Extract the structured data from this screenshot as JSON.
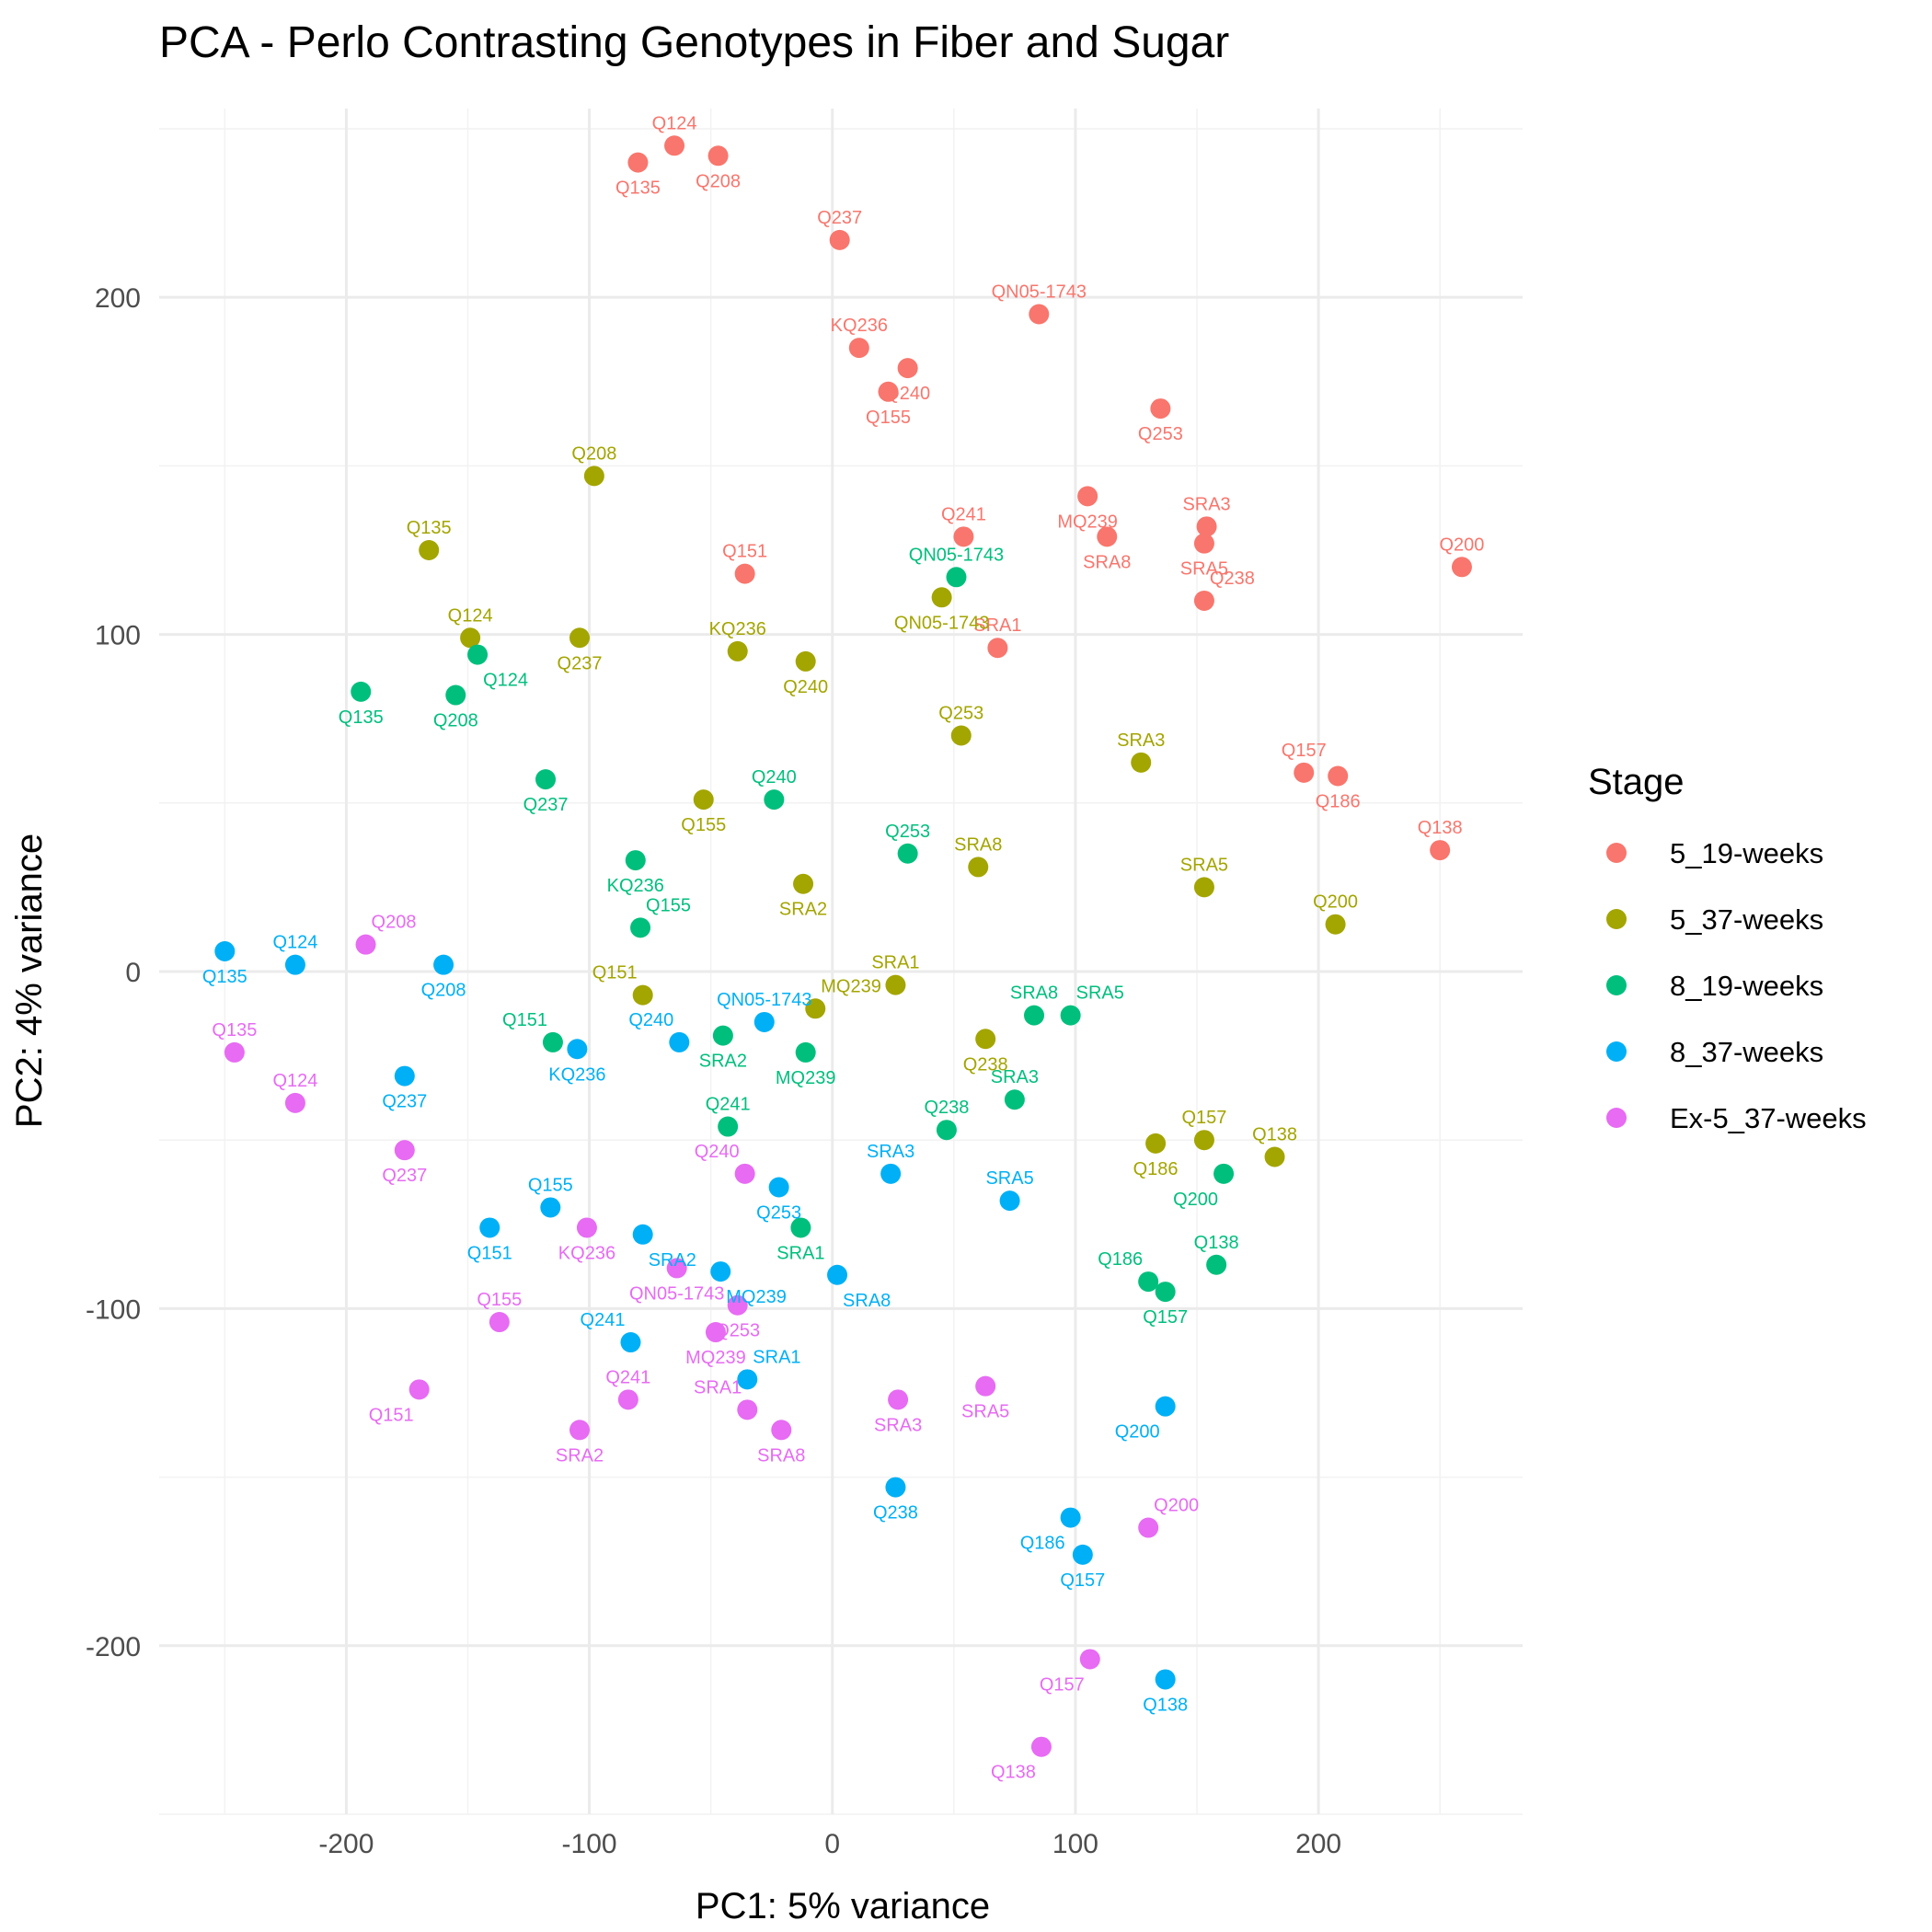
{
  "chart_data": {
    "type": "scatter",
    "title": "PCA - Perlo Contrasting Genotypes in Fiber and Sugar",
    "xlabel": "PC1: 5% variance",
    "ylabel": "PC2: 4% variance",
    "xlim": [
      -277,
      284
    ],
    "ylim": [
      -250,
      256
    ],
    "xticks": [
      -200,
      -100,
      0,
      100,
      200
    ],
    "yticks": [
      -200,
      -100,
      0,
      100,
      200
    ],
    "grid": true,
    "legend": {
      "title": "Stage",
      "position": "right"
    },
    "series": [
      {
        "name": "5_19-weeks",
        "color": "#F8766D",
        "points": [
          {
            "label": "Q124",
            "x": -65,
            "y": 245,
            "pos": "above"
          },
          {
            "label": "Q135",
            "x": -80,
            "y": 240,
            "pos": "below"
          },
          {
            "label": "Q208",
            "x": -47,
            "y": 242,
            "pos": "below"
          },
          {
            "label": "Q237",
            "x": 3,
            "y": 217,
            "pos": "above"
          },
          {
            "label": "QN05-1743",
            "x": 85,
            "y": 195,
            "pos": "above"
          },
          {
            "label": "KQ236",
            "x": 11,
            "y": 185,
            "pos": "above"
          },
          {
            "label": "Q240",
            "x": 31,
            "y": 179,
            "pos": "below"
          },
          {
            "label": "Q155",
            "x": 23,
            "y": 172,
            "pos": "below"
          },
          {
            "label": "Q253",
            "x": 135,
            "y": 167,
            "pos": "below"
          },
          {
            "label": "MQ239",
            "x": 105,
            "y": 141,
            "pos": "below"
          },
          {
            "label": "Q241",
            "x": 54,
            "y": 129,
            "pos": "above"
          },
          {
            "label": "SRA8",
            "x": 113,
            "y": 129,
            "pos": "below"
          },
          {
            "label": "SRA3",
            "x": 154,
            "y": 132,
            "pos": "above"
          },
          {
            "label": "SRA5",
            "x": 153,
            "y": 127,
            "pos": "below"
          },
          {
            "label": "Q151",
            "x": -36,
            "y": 118,
            "pos": "above"
          },
          {
            "label": "Q200",
            "x": 259,
            "y": 120,
            "pos": "above"
          },
          {
            "label": "Q238",
            "x": 153,
            "y": 110,
            "pos": "aboveright"
          },
          {
            "label": "SRA1",
            "x": 68,
            "y": 96,
            "pos": "above"
          },
          {
            "label": "Q157",
            "x": 194,
            "y": 59,
            "pos": "above"
          },
          {
            "label": "Q186",
            "x": 208,
            "y": 58,
            "pos": "below"
          },
          {
            "label": "Q138",
            "x": 250,
            "y": 36,
            "pos": "above"
          }
        ]
      },
      {
        "name": "5_37-weeks",
        "color": "#A3A500",
        "points": [
          {
            "label": "Q208",
            "x": -98,
            "y": 147,
            "pos": "above"
          },
          {
            "label": "Q135",
            "x": -166,
            "y": 125,
            "pos": "above"
          },
          {
            "label": "Q124",
            "x": -149,
            "y": 99,
            "pos": "above"
          },
          {
            "label": "Q237",
            "x": -104,
            "y": 99,
            "pos": "below"
          },
          {
            "label": "KQ236",
            "x": -39,
            "y": 95,
            "pos": "above"
          },
          {
            "label": "Q240",
            "x": -11,
            "y": 92,
            "pos": "below"
          },
          {
            "label": "QN05-1743",
            "x": 45,
            "y": 111,
            "pos": "below"
          },
          {
            "label": "Q253",
            "x": 53,
            "y": 70,
            "pos": "above"
          },
          {
            "label": "SRA3",
            "x": 127,
            "y": 62,
            "pos": "above"
          },
          {
            "label": "Q155",
            "x": -53,
            "y": 51,
            "pos": "below"
          },
          {
            "label": "SRA8",
            "x": 60,
            "y": 31,
            "pos": "above"
          },
          {
            "label": "SRA5",
            "x": 153,
            "y": 25,
            "pos": "above"
          },
          {
            "label": "SRA2",
            "x": -12,
            "y": 26,
            "pos": "below"
          },
          {
            "label": "Q200",
            "x": 207,
            "y": 14,
            "pos": "above"
          },
          {
            "label": "SRA1",
            "x": 26,
            "y": -4,
            "pos": "above"
          },
          {
            "label": "Q151",
            "x": -78,
            "y": -7,
            "pos": "aboveleft"
          },
          {
            "label": "MQ239",
            "x": -7,
            "y": -11,
            "pos": "aboveright"
          },
          {
            "label": "Q238",
            "x": 63,
            "y": -20,
            "pos": "below"
          },
          {
            "label": "Q186",
            "x": 133,
            "y": -51,
            "pos": "below"
          },
          {
            "label": "Q157",
            "x": 153,
            "y": -50,
            "pos": "above"
          },
          {
            "label": "Q138",
            "x": 182,
            "y": -55,
            "pos": "above"
          }
        ]
      },
      {
        "name": "8_19-weeks",
        "color": "#00BF7D",
        "points": [
          {
            "label": "QN05-1743",
            "x": 51,
            "y": 117,
            "pos": "above"
          },
          {
            "label": "Q124",
            "x": -146,
            "y": 94,
            "pos": "belowright"
          },
          {
            "label": "Q135",
            "x": -194,
            "y": 83,
            "pos": "below"
          },
          {
            "label": "Q208",
            "x": -155,
            "y": 82,
            "pos": "below"
          },
          {
            "label": "Q237",
            "x": -118,
            "y": 57,
            "pos": "below"
          },
          {
            "label": "Q240",
            "x": -24,
            "y": 51,
            "pos": "above"
          },
          {
            "label": "KQ236",
            "x": -81,
            "y": 33,
            "pos": "below"
          },
          {
            "label": "Q253",
            "x": 31,
            "y": 35,
            "pos": "above"
          },
          {
            "label": "Q155",
            "x": -79,
            "y": 13,
            "pos": "aboveright"
          },
          {
            "label": "SRA8",
            "x": 83,
            "y": -13,
            "pos": "above"
          },
          {
            "label": "SRA5",
            "x": 98,
            "y": -13,
            "pos": "aboveright"
          },
          {
            "label": "Q151",
            "x": -115,
            "y": -21,
            "pos": "aboveleft"
          },
          {
            "label": "SRA2",
            "x": -45,
            "y": -19,
            "pos": "below"
          },
          {
            "label": "MQ239",
            "x": -11,
            "y": -24,
            "pos": "below"
          },
          {
            "label": "SRA3",
            "x": 75,
            "y": -38,
            "pos": "above"
          },
          {
            "label": "Q241",
            "x": -43,
            "y": -46,
            "pos": "above"
          },
          {
            "label": "Q238",
            "x": 47,
            "y": -47,
            "pos": "above"
          },
          {
            "label": "Q200",
            "x": 161,
            "y": -60,
            "pos": "belowleft"
          },
          {
            "label": "SRA1",
            "x": -13,
            "y": -76,
            "pos": "below"
          },
          {
            "label": "Q138",
            "x": 158,
            "y": -87,
            "pos": "above"
          },
          {
            "label": "Q186",
            "x": 130,
            "y": -92,
            "pos": "aboveleft"
          },
          {
            "label": "Q157",
            "x": 137,
            "y": -95,
            "pos": "below"
          }
        ]
      },
      {
        "name": "8_37-weeks",
        "color": "#00B0F6",
        "points": [
          {
            "label": "Q135",
            "x": -250,
            "y": 6,
            "pos": "below"
          },
          {
            "label": "Q124",
            "x": -221,
            "y": 2,
            "pos": "above"
          },
          {
            "label": "Q208",
            "x": -160,
            "y": 2,
            "pos": "below"
          },
          {
            "label": "QN05-1743",
            "x": -28,
            "y": -15,
            "pos": "above"
          },
          {
            "label": "Q240",
            "x": -63,
            "y": -21,
            "pos": "aboveleft"
          },
          {
            "label": "KQ236",
            "x": -105,
            "y": -23,
            "pos": "below"
          },
          {
            "label": "Q237",
            "x": -176,
            "y": -31,
            "pos": "below"
          },
          {
            "label": "SRA3",
            "x": 24,
            "y": -60,
            "pos": "above"
          },
          {
            "label": "Q253",
            "x": -22,
            "y": -64,
            "pos": "below"
          },
          {
            "label": "SRA5",
            "x": 73,
            "y": -68,
            "pos": "above"
          },
          {
            "label": "Q155",
            "x": -116,
            "y": -70,
            "pos": "above"
          },
          {
            "label": "Q151",
            "x": -141,
            "y": -76,
            "pos": "below"
          },
          {
            "label": "SRA2",
            "x": -78,
            "y": -78,
            "pos": "belowright"
          },
          {
            "label": "MQ239",
            "x": -46,
            "y": -89,
            "pos": "belowright"
          },
          {
            "label": "SRA8",
            "x": 2,
            "y": -90,
            "pos": "belowright"
          },
          {
            "label": "Q241",
            "x": -83,
            "y": -110,
            "pos": "aboveleft"
          },
          {
            "label": "SRA1",
            "x": -35,
            "y": -121,
            "pos": "aboveright"
          },
          {
            "label": "Q200",
            "x": 137,
            "y": -129,
            "pos": "belowleft"
          },
          {
            "label": "Q238",
            "x": 26,
            "y": -153,
            "pos": "below"
          },
          {
            "label": "Q186",
            "x": 98,
            "y": -162,
            "pos": "belowleft"
          },
          {
            "label": "Q157",
            "x": 103,
            "y": -173,
            "pos": "below"
          },
          {
            "label": "Q138",
            "x": 137,
            "y": -210,
            "pos": "below"
          }
        ]
      },
      {
        "name": "Ex-5_37-weeks",
        "color": "#E76BF3",
        "points": [
          {
            "label": "Q208",
            "x": -192,
            "y": 8,
            "pos": "aboveright"
          },
          {
            "label": "Q135",
            "x": -246,
            "y": -24,
            "pos": "above"
          },
          {
            "label": "Q124",
            "x": -221,
            "y": -39,
            "pos": "above"
          },
          {
            "label": "Q237",
            "x": -176,
            "y": -53,
            "pos": "below"
          },
          {
            "label": "Q240",
            "x": -36,
            "y": -60,
            "pos": "aboveleft"
          },
          {
            "label": "KQ236",
            "x": -101,
            "y": -76,
            "pos": "below"
          },
          {
            "label": "QN05-1743",
            "x": -64,
            "y": -88,
            "pos": "below"
          },
          {
            "label": "Q253",
            "x": -39,
            "y": -99,
            "pos": "below"
          },
          {
            "label": "MQ239",
            "x": -48,
            "y": -107,
            "pos": "below"
          },
          {
            "label": "Q155",
            "x": -137,
            "y": -104,
            "pos": "above"
          },
          {
            "label": "Q151",
            "x": -170,
            "y": -124,
            "pos": "belowleft"
          },
          {
            "label": "Q241",
            "x": -84,
            "y": -127,
            "pos": "above"
          },
          {
            "label": "SRA1",
            "x": -35,
            "y": -130,
            "pos": "aboveleft"
          },
          {
            "label": "SRA2",
            "x": -104,
            "y": -136,
            "pos": "below"
          },
          {
            "label": "SRA8",
            "x": -21,
            "y": -136,
            "pos": "below"
          },
          {
            "label": "SRA3",
            "x": 27,
            "y": -127,
            "pos": "below"
          },
          {
            "label": "SRA5",
            "x": 63,
            "y": -123,
            "pos": "below"
          },
          {
            "label": "Q200",
            "x": 130,
            "y": -165,
            "pos": "aboveright"
          },
          {
            "label": "Q157",
            "x": 106,
            "y": -204,
            "pos": "belowleft"
          },
          {
            "label": "Q138",
            "x": 86,
            "y": -230,
            "pos": "belowleft"
          }
        ]
      }
    ]
  }
}
